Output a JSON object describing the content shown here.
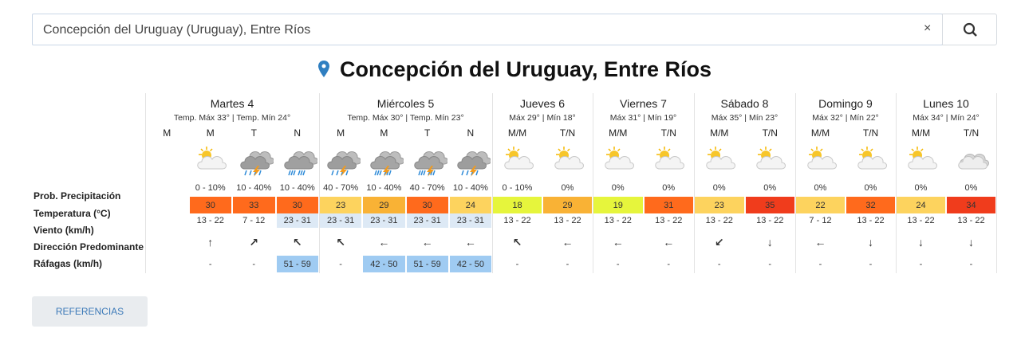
{
  "search": {
    "query": "Concepción del Uruguay (Uruguay), Entre Ríos",
    "clear": "×"
  },
  "title": "Concepción del Uruguay, Entre Ríos",
  "row_labels": [
    "Prob. Precipitación",
    "Temperatura (°C)",
    "Viento (km/h)",
    "Dirección Predominante",
    "Ráfagas (km/h)"
  ],
  "days": [
    {
      "name": "Martes 4",
      "summary": "Temp. Máx 33° | Temp. Mín 24°",
      "periods": [
        {
          "label": "M"
        },
        {
          "label": "M",
          "precip": "0 - 10%",
          "temp": 30,
          "wind": "13 - 22",
          "direction": "↑",
          "gusts": "-"
        },
        {
          "label": "T",
          "precip": "10 - 40%",
          "temp": 33,
          "wind": "7 - 12",
          "direction": "↗",
          "gusts": "-"
        },
        {
          "label": "N",
          "precip": "10 - 40%",
          "temp": 30,
          "wind": "23 - 31",
          "direction": "↖",
          "gusts": "51 - 59"
        }
      ]
    },
    {
      "name": "Miércoles 5",
      "summary": "Temp. Máx 30° | Temp. Mín 23°",
      "periods": [
        {
          "label": "M",
          "precip": "40 - 70%",
          "temp": 23,
          "wind": "23 - 31",
          "direction": "↖",
          "gusts": "-"
        },
        {
          "label": "M",
          "precip": "10 - 40%",
          "temp": 29,
          "wind": "23 - 31",
          "direction": "←",
          "gusts": "42 - 50"
        },
        {
          "label": "T",
          "precip": "40 - 70%",
          "temp": 30,
          "wind": "23 - 31",
          "direction": "←",
          "gusts": "51 - 59"
        },
        {
          "label": "N",
          "precip": "10 - 40%",
          "temp": 24,
          "wind": "23 - 31",
          "direction": "←",
          "gusts": "42 - 50"
        }
      ]
    },
    {
      "name": "Jueves 6",
      "summary": "Máx 29° | Mín 18°",
      "periods": [
        {
          "label": "M/M",
          "precip": "0 - 10%",
          "temp": 18,
          "wind": "13 - 22",
          "direction": "↖",
          "gusts": "-"
        },
        {
          "label": "T/N",
          "precip": "0%",
          "temp": 29,
          "wind": "13 - 22",
          "direction": "←",
          "gusts": "-"
        }
      ]
    },
    {
      "name": "Viernes 7",
      "summary": "Máx 31° | Mín 19°",
      "periods": [
        {
          "label": "M/M",
          "precip": "0%",
          "temp": 19,
          "wind": "13 - 22",
          "direction": "←",
          "gusts": "-"
        },
        {
          "label": "T/N",
          "precip": "0%",
          "temp": 31,
          "wind": "13 - 22",
          "direction": "←",
          "gusts": "-"
        }
      ]
    },
    {
      "name": "Sábado 8",
      "summary": "Máx 35° | Mín 23°",
      "periods": [
        {
          "label": "M/M",
          "precip": "0%",
          "temp": 23,
          "wind": "13 - 22",
          "direction": "↙",
          "gusts": "-"
        },
        {
          "label": "T/N",
          "precip": "0%",
          "temp": 35,
          "wind": "13 - 22",
          "direction": "↓",
          "gusts": "-"
        }
      ]
    },
    {
      "name": "Domingo 9",
      "summary": "Máx 32° | Mín 22°",
      "periods": [
        {
          "label": "M/M",
          "precip": "0%",
          "temp": 22,
          "wind": "7 - 12",
          "direction": "←",
          "gusts": "-"
        },
        {
          "label": "T/N",
          "precip": "0%",
          "temp": 32,
          "wind": "13 - 22",
          "direction": "↓",
          "gusts": "-"
        }
      ]
    },
    {
      "name": "Lunes 10",
      "summary": "Máx 34° | Mín 24°",
      "periods": [
        {
          "label": "M/M",
          "precip": "0%",
          "temp": 24,
          "wind": "13 - 22",
          "direction": "↓",
          "gusts": "-"
        },
        {
          "label": "T/N",
          "precip": "0%",
          "temp": 34,
          "wind": "13 - 22",
          "direction": "↓",
          "gusts": "-"
        }
      ]
    }
  ],
  "button": "REFERENCIAS"
}
